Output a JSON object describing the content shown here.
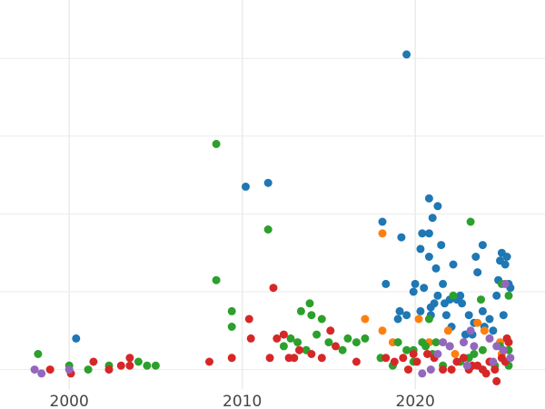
{
  "chart_data": {
    "type": "scatter",
    "title": "",
    "xlabel": "",
    "ylabel": "",
    "xlim": [
      1996.0,
      2027.5
    ],
    "ylim": [
      0,
      100
    ],
    "x_ticks": [
      2000,
      2010,
      2020
    ],
    "x_tick_labels": [
      "2000",
      "2010",
      "2020"
    ],
    "y_grid_values": [
      5,
      25,
      45,
      65,
      85,
      105
    ],
    "grid": true,
    "legend": "none",
    "colors": {
      "blue": "#1f77b4",
      "orange": "#ff7f0e",
      "green": "#2ca02c",
      "red": "#d62728",
      "purple": "#9467bd",
      "grid": "#ebebeb",
      "background": "#ffffff"
    },
    "series": [
      {
        "name": "blue",
        "color": "#1f77b4",
        "points": [
          [
            2000.4,
            13
          ],
          [
            2010.2,
            52
          ],
          [
            2011.5,
            53
          ],
          [
            2018.1,
            43
          ],
          [
            2018.3,
            27
          ],
          [
            2019.0,
            18
          ],
          [
            2019.1,
            20
          ],
          [
            2019.2,
            39
          ],
          [
            2019.5,
            86
          ],
          [
            2019.5,
            19
          ],
          [
            2019.9,
            25
          ],
          [
            2020.0,
            27
          ],
          [
            2020.3,
            20
          ],
          [
            2020.3,
            36
          ],
          [
            2020.4,
            40
          ],
          [
            2020.5,
            26
          ],
          [
            2020.8,
            49
          ],
          [
            2020.8,
            40
          ],
          [
            2020.8,
            34
          ],
          [
            2020.9,
            21
          ],
          [
            2020.9,
            19
          ],
          [
            2021.0,
            44
          ],
          [
            2021.1,
            22
          ],
          [
            2021.2,
            31
          ],
          [
            2021.3,
            47
          ],
          [
            2021.3,
            24
          ],
          [
            2021.5,
            37
          ],
          [
            2021.6,
            27
          ],
          [
            2021.7,
            22
          ],
          [
            2021.8,
            19
          ],
          [
            2022.0,
            23
          ],
          [
            2022.1,
            16
          ],
          [
            2022.2,
            32
          ],
          [
            2022.4,
            23
          ],
          [
            2022.6,
            24
          ],
          [
            2022.7,
            22
          ],
          [
            2022.9,
            14
          ],
          [
            2023.1,
            19
          ],
          [
            2023.3,
            14
          ],
          [
            2023.4,
            17
          ],
          [
            2023.5,
            34
          ],
          [
            2023.6,
            30
          ],
          [
            2023.9,
            37
          ],
          [
            2023.9,
            20
          ],
          [
            2024.0,
            16
          ],
          [
            2024.3,
            18
          ],
          [
            2024.5,
            15
          ],
          [
            2024.7,
            24
          ],
          [
            2024.8,
            28
          ],
          [
            2024.9,
            33
          ],
          [
            2025.0,
            35
          ],
          [
            2025.1,
            19
          ],
          [
            2025.2,
            32
          ],
          [
            2025.3,
            34
          ],
          [
            2025.4,
            27
          ],
          [
            2025.5,
            26
          ]
        ]
      },
      {
        "name": "orange",
        "color": "#ff7f0e",
        "points": [
          [
            2017.1,
            18
          ],
          [
            2018.1,
            40
          ],
          [
            2018.1,
            15
          ],
          [
            2018.7,
            12
          ],
          [
            2020.2,
            18
          ],
          [
            2020.8,
            12
          ],
          [
            2021.9,
            15
          ],
          [
            2022.3,
            9
          ],
          [
            2023.6,
            17
          ],
          [
            2024.0,
            15
          ],
          [
            2024.3,
            13
          ],
          [
            2024.9,
            12
          ],
          [
            2025.0,
            9
          ]
        ]
      },
      {
        "name": "green",
        "color": "#2ca02c",
        "points": [
          [
            1998.2,
            9
          ],
          [
            2000.0,
            6
          ],
          [
            2001.1,
            5
          ],
          [
            2002.3,
            6
          ],
          [
            2004.0,
            7
          ],
          [
            2004.5,
            6
          ],
          [
            2005.0,
            6
          ],
          [
            2008.5,
            28
          ],
          [
            2008.5,
            63
          ],
          [
            2009.4,
            16
          ],
          [
            2009.4,
            20
          ],
          [
            2011.5,
            41
          ],
          [
            2012.4,
            11
          ],
          [
            2012.8,
            13
          ],
          [
            2013.2,
            12
          ],
          [
            2013.4,
            20
          ],
          [
            2013.7,
            10
          ],
          [
            2013.9,
            22
          ],
          [
            2014.0,
            19
          ],
          [
            2014.3,
            14
          ],
          [
            2014.6,
            18
          ],
          [
            2015.0,
            12
          ],
          [
            2015.8,
            10
          ],
          [
            2016.1,
            13
          ],
          [
            2016.6,
            12
          ],
          [
            2017.1,
            13
          ],
          [
            2018.0,
            8
          ],
          [
            2018.7,
            6
          ],
          [
            2019.0,
            12
          ],
          [
            2019.5,
            10
          ],
          [
            2019.9,
            10
          ],
          [
            2019.9,
            7
          ],
          [
            2020.4,
            12
          ],
          [
            2020.6,
            11
          ],
          [
            2020.8,
            18
          ],
          [
            2021.0,
            9
          ],
          [
            2021.2,
            12
          ],
          [
            2021.6,
            6
          ],
          [
            2022.0,
            11
          ],
          [
            2022.2,
            24
          ],
          [
            2022.6,
            7
          ],
          [
            2022.8,
            8
          ],
          [
            2023.1,
            8
          ],
          [
            2023.2,
            43
          ],
          [
            2023.4,
            9
          ],
          [
            2023.8,
            23
          ],
          [
            2023.9,
            10
          ],
          [
            2024.3,
            7
          ],
          [
            2024.6,
            6
          ],
          [
            2024.9,
            11
          ],
          [
            2025.0,
            27
          ],
          [
            2025.3,
            13
          ],
          [
            2025.4,
            10
          ],
          [
            2025.4,
            24
          ],
          [
            2025.4,
            6
          ]
        ]
      },
      {
        "name": "red",
        "color": "#d62728",
        "points": [
          [
            1998.9,
            5
          ],
          [
            2000.1,
            4
          ],
          [
            2001.4,
            7
          ],
          [
            2002.3,
            5
          ],
          [
            2003.0,
            6
          ],
          [
            2003.5,
            8
          ],
          [
            2003.5,
            6
          ],
          [
            2008.1,
            7
          ],
          [
            2009.4,
            8
          ],
          [
            2010.4,
            18
          ],
          [
            2010.5,
            13
          ],
          [
            2011.6,
            8
          ],
          [
            2011.8,
            26
          ],
          [
            2012.0,
            13
          ],
          [
            2012.4,
            14
          ],
          [
            2012.7,
            8
          ],
          [
            2013.0,
            8
          ],
          [
            2013.3,
            10
          ],
          [
            2014.0,
            9
          ],
          [
            2014.6,
            8
          ],
          [
            2015.1,
            15
          ],
          [
            2015.4,
            11
          ],
          [
            2016.6,
            7
          ],
          [
            2018.3,
            8
          ],
          [
            2018.8,
            7
          ],
          [
            2019.3,
            8
          ],
          [
            2019.6,
            5
          ],
          [
            2019.9,
            9
          ],
          [
            2020.1,
            7
          ],
          [
            2020.7,
            9
          ],
          [
            2021.1,
            8
          ],
          [
            2021.6,
            5
          ],
          [
            2022.1,
            5
          ],
          [
            2022.4,
            7
          ],
          [
            2022.8,
            8
          ],
          [
            2023.1,
            5
          ],
          [
            2023.3,
            6
          ],
          [
            2023.6,
            6
          ],
          [
            2023.9,
            5
          ],
          [
            2024.1,
            4
          ],
          [
            2024.3,
            7
          ],
          [
            2024.6,
            5
          ],
          [
            2024.7,
            2
          ],
          [
            2025.0,
            8
          ],
          [
            2025.2,
            7
          ],
          [
            2025.3,
            13
          ],
          [
            2025.4,
            12
          ]
        ]
      },
      {
        "name": "purple",
        "color": "#9467bd",
        "points": [
          [
            1998.0,
            5
          ],
          [
            1998.4,
            4
          ],
          [
            2000.0,
            5
          ],
          [
            2020.4,
            4
          ],
          [
            2020.9,
            5
          ],
          [
            2021.3,
            9
          ],
          [
            2021.6,
            12
          ],
          [
            2022.0,
            11
          ],
          [
            2022.8,
            12
          ],
          [
            2023.2,
            15
          ],
          [
            2023.4,
            11
          ],
          [
            2024.3,
            13
          ],
          [
            2024.5,
            7
          ],
          [
            2024.7,
            11
          ],
          [
            2025.1,
            10
          ],
          [
            2025.5,
            8
          ],
          [
            2025.2,
            27
          ],
          [
            2023.0,
            6
          ]
        ]
      }
    ]
  }
}
